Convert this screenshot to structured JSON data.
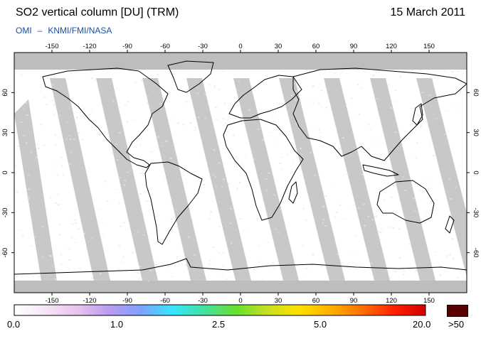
{
  "header": {
    "title": "SO2 vertical column [DU] (TRM)",
    "date": "15 March 2011",
    "credit_left": "OMI",
    "credit_sep": "–",
    "credit_right": "KNMI/FMI/NASA"
  },
  "map": {
    "projection": "equirectangular",
    "lon_ticks": [
      "-150",
      "-120",
      "-90",
      "-60",
      "-30",
      "0",
      "30",
      "60",
      "90",
      "120",
      "150"
    ],
    "lat_ticks": [
      "60",
      "30",
      "0",
      "-30",
      "-60"
    ],
    "lon_values": [
      -150,
      -120,
      -90,
      -60,
      -30,
      0,
      30,
      60,
      90,
      120,
      150
    ],
    "lat_values": [
      60,
      30,
      0,
      -30,
      -60
    ],
    "lon_range": [
      -180,
      180
    ],
    "lat_range": [
      -90,
      90
    ],
    "no_data_color": "#bdbdbd",
    "orbit_gap_color": "#c8c8c8"
  },
  "colorbar": {
    "labels": [
      "0.0",
      "1.0",
      "2.5",
      "5.0",
      "20.0"
    ],
    "over_label": ">50",
    "over_color": "#5a0000",
    "stops": [
      "#ffffff",
      "#f6e6f6",
      "#e8c4ee",
      "#b99cf0",
      "#7fa0ff",
      "#37e6ff",
      "#45e0a0",
      "#66e030",
      "#c8e020",
      "#ffe000",
      "#ffb000",
      "#ff7000",
      "#ff2000",
      "#d40000"
    ]
  }
}
